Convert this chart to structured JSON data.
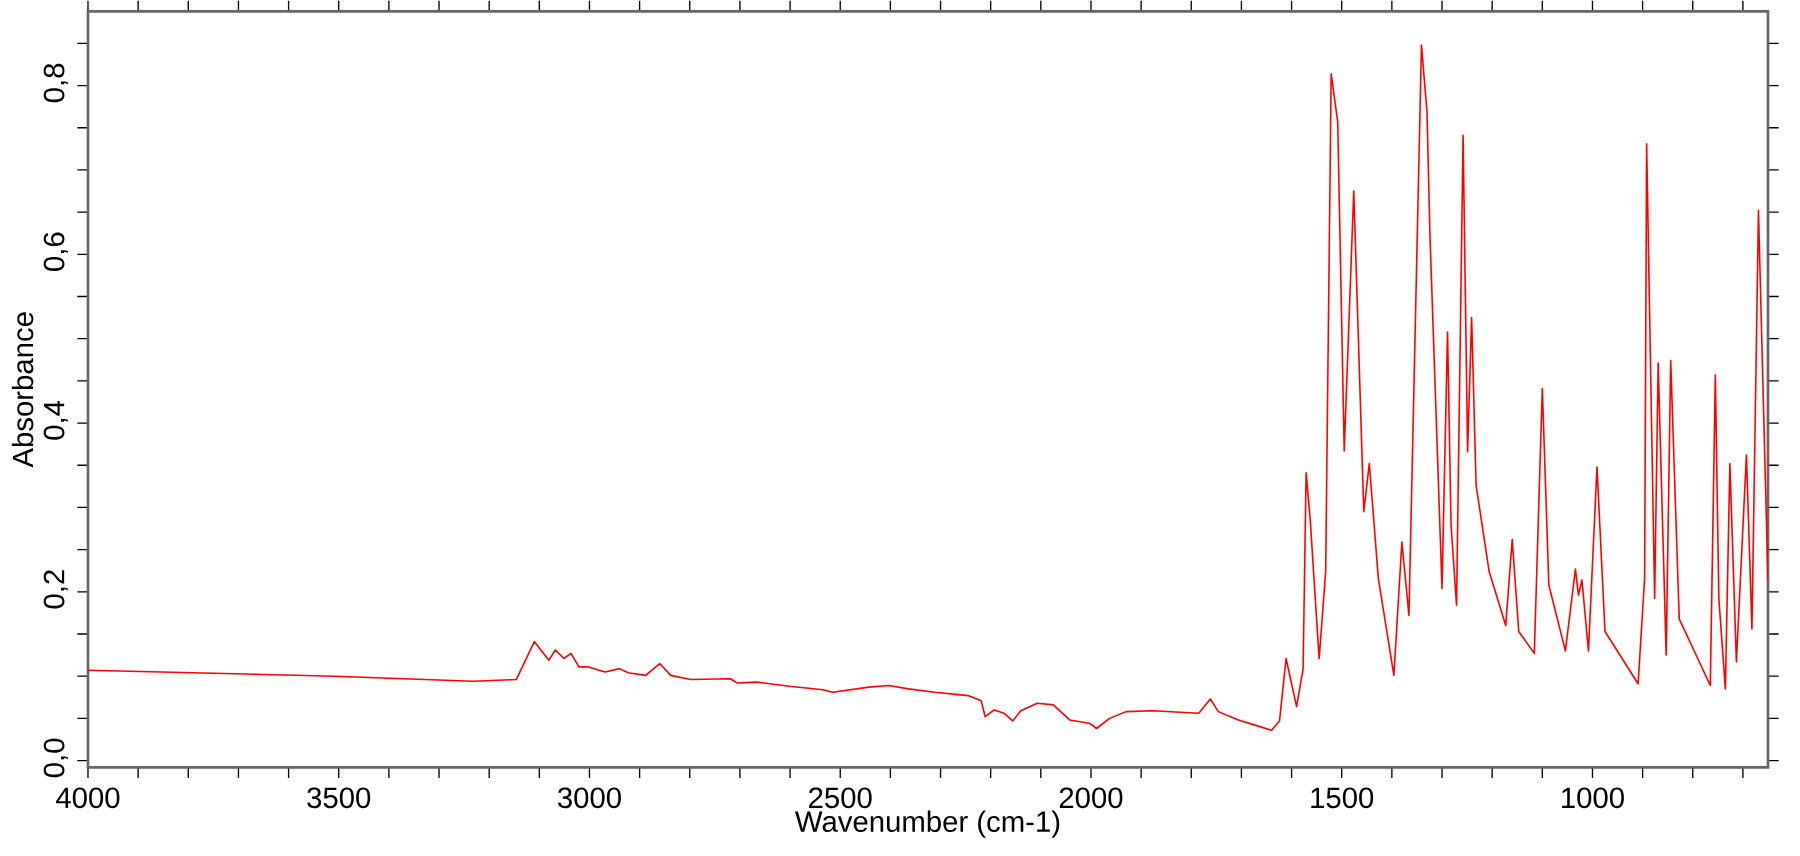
{
  "chart_data": {
    "type": "line",
    "xlabel": "Wavenumber (cm-1)",
    "ylabel": "Absorbance",
    "xlim": [
      4000,
      650
    ],
    "ylim": [
      -0.008,
      0.888
    ],
    "xticks": [
      4000,
      {
        "value": 3900,
        "label": null
      },
      {
        "value": 3800,
        "label": null
      },
      {
        "value": 3700,
        "label": null
      },
      {
        "value": 3600,
        "label": null
      },
      3500,
      {
        "value": 3400,
        "label": null
      },
      {
        "value": 3300,
        "label": null
      },
      {
        "value": 3200,
        "label": null
      },
      {
        "value": 3100,
        "label": null
      },
      3000,
      {
        "value": 2900,
        "label": null
      },
      {
        "value": 2800,
        "label": null
      },
      {
        "value": 2700,
        "label": null
      },
      {
        "value": 2600,
        "label": null
      },
      2500,
      {
        "value": 2400,
        "label": null
      },
      {
        "value": 2300,
        "label": null
      },
      {
        "value": 2200,
        "label": null
      },
      {
        "value": 2100,
        "label": null
      },
      2000,
      {
        "value": 1900,
        "label": null
      },
      {
        "value": 1800,
        "label": null
      },
      {
        "value": 1700,
        "label": null
      },
      {
        "value": 1600,
        "label": null
      },
      1500,
      {
        "value": 1400,
        "label": null
      },
      {
        "value": 1300,
        "label": null
      },
      {
        "value": 1200,
        "label": null
      },
      {
        "value": 1100,
        "label": null
      },
      1000,
      {
        "value": 900,
        "label": null
      },
      {
        "value": 800,
        "label": null
      },
      {
        "value": 700,
        "label": null
      }
    ],
    "yticks": [
      {
        "value": 0.0,
        "label": "0,0"
      },
      {
        "value": 0.05,
        "label": null
      },
      {
        "value": 0.1,
        "label": null
      },
      {
        "value": 0.15,
        "label": null
      },
      {
        "value": 0.2,
        "label": "0,2"
      },
      {
        "value": 0.25,
        "label": null
      },
      {
        "value": 0.3,
        "label": null
      },
      {
        "value": 0.35,
        "label": null
      },
      {
        "value": 0.4,
        "label": "0,4"
      },
      {
        "value": 0.45,
        "label": null
      },
      {
        "value": 0.5,
        "label": null
      },
      {
        "value": 0.55,
        "label": null
      },
      {
        "value": 0.6,
        "label": "0,6"
      },
      {
        "value": 0.65,
        "label": null
      },
      {
        "value": 0.7,
        "label": null
      },
      {
        "value": 0.75,
        "label": null
      },
      {
        "value": 0.8,
        "label": "0,8"
      },
      {
        "value": 0.85,
        "label": null
      }
    ],
    "grid": false,
    "series": [
      {
        "color": "#ff0000",
        "x": [
          4000,
          3508,
          3232,
          3146,
          3110,
          3081,
          3068,
          3051,
          3037,
          3021,
          3002,
          2969,
          2940,
          2923,
          2888,
          2860,
          2838,
          2798,
          2719,
          2706,
          2667,
          2601,
          2535,
          2515,
          2443,
          2403,
          2364,
          2311,
          2245,
          2219,
          2211,
          2193,
          2173,
          2156,
          2140,
          2107,
          2075,
          2042,
          2002,
          1989,
          1963,
          1930,
          1877,
          1785,
          1762,
          1746,
          1706,
          1673,
          1640,
          1624,
          1611,
          1590,
          1577,
          1571,
          1563,
          1545,
          1532,
          1521,
          1508,
          1495,
          1476,
          1456,
          1445,
          1427,
          1396,
          1380,
          1366,
          1341,
          1330,
          1324,
          1300,
          1289,
          1282,
          1271,
          1258,
          1249,
          1241,
          1232,
          1206,
          1173,
          1160,
          1147,
          1116,
          1100,
          1087,
          1054,
          1034,
          1028,
          1021,
          1008,
          991,
          975,
          909,
          896,
          892,
          876,
          869,
          853,
          844,
          827,
          765,
          755,
          748,
          735,
          726,
          713,
          693,
          682,
          669,
          650
        ],
        "values": [
          0.107,
          0.1,
          0.094,
          0.096,
          0.141,
          0.119,
          0.131,
          0.121,
          0.127,
          0.111,
          0.111,
          0.105,
          0.109,
          0.104,
          0.101,
          0.115,
          0.101,
          0.096,
          0.097,
          0.092,
          0.093,
          0.088,
          0.084,
          0.081,
          0.087,
          0.089,
          0.085,
          0.081,
          0.077,
          0.071,
          0.052,
          0.06,
          0.056,
          0.047,
          0.059,
          0.068,
          0.066,
          0.048,
          0.044,
          0.038,
          0.05,
          0.058,
          0.059,
          0.056,
          0.073,
          0.058,
          0.048,
          0.042,
          0.036,
          0.047,
          0.121,
          0.064,
          0.109,
          0.341,
          0.287,
          0.121,
          0.224,
          0.814,
          0.757,
          0.367,
          0.675,
          0.295,
          0.352,
          0.216,
          0.101,
          0.259,
          0.172,
          0.848,
          0.769,
          0.622,
          0.204,
          0.508,
          0.279,
          0.184,
          0.741,
          0.366,
          0.525,
          0.326,
          0.224,
          0.16,
          0.262,
          0.153,
          0.127,
          0.441,
          0.208,
          0.13,
          0.227,
          0.196,
          0.214,
          0.13,
          0.348,
          0.153,
          0.091,
          0.216,
          0.731,
          0.192,
          0.471,
          0.125,
          0.474,
          0.168,
          0.089,
          0.457,
          0.192,
          0.085,
          0.352,
          0.117,
          0.362,
          0.156,
          0.652,
          0.212
        ]
      }
    ]
  }
}
